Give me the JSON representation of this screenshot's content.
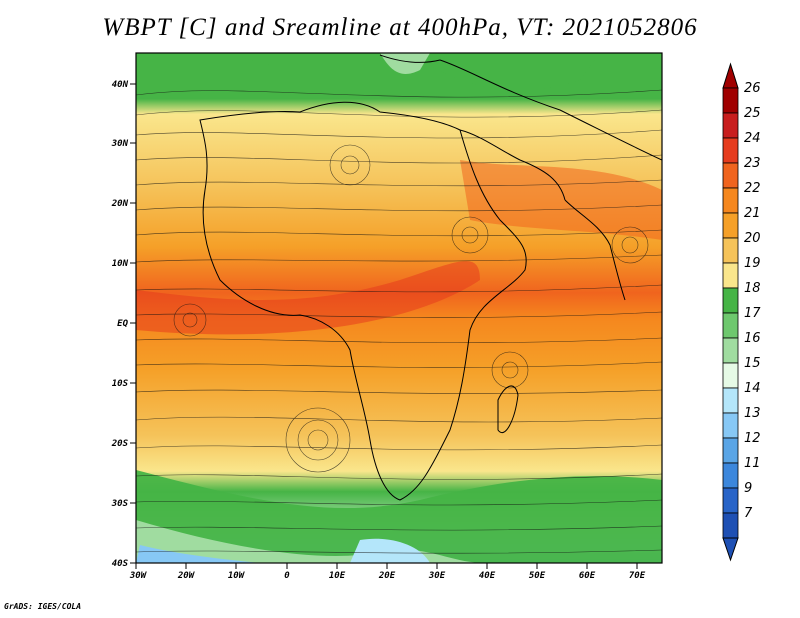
{
  "title": "WBPT [C] and Sreamline at 400hPa, VT: 2021052806",
  "credit": "GrADS: IGES/COLA",
  "map": {
    "variable": "Wet-bulb potential temperature",
    "units": "C",
    "level": "400hPa",
    "valid_time": "2021052806",
    "lat_labels": [
      "40N",
      "30N",
      "20N",
      "10N",
      "EQ",
      "10S",
      "20S",
      "30S",
      "40S"
    ],
    "lon_labels": [
      "30W",
      "20W",
      "10W",
      "0",
      "10E",
      "20E",
      "30E",
      "40E",
      "50E",
      "60E",
      "70E"
    ],
    "colorbar": {
      "labels": [
        "26",
        "25",
        "24",
        "23",
        "22",
        "21",
        "20",
        "19",
        "18",
        "17",
        "16",
        "15",
        "14",
        "13",
        "12",
        "11",
        "9",
        "7"
      ],
      "colors": [
        "#a00000",
        "#c81e1e",
        "#e63c1e",
        "#f0641e",
        "#f5871e",
        "#f5a028",
        "#f5c35a",
        "#fae68c",
        "#46b446",
        "#6ec86e",
        "#a0dca0",
        "#e6fae6",
        "#b4e6fa",
        "#87c8f5",
        "#5aa5e6",
        "#3c87dc",
        "#2864c8",
        "#1e50b4"
      ]
    }
  }
}
